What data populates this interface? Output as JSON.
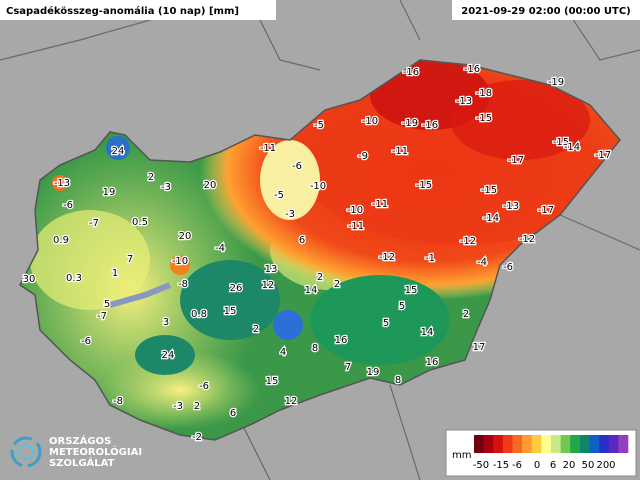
{
  "header": {
    "title": "Csapadékösszeg-anomália (10 nap) [mm]",
    "date": "2021-09-29 02:00 (00:00 UTC)"
  },
  "logo": {
    "lines": [
      "ORSZÁGOS",
      "METEOROLÓGIAI",
      "SZOLGÁLAT"
    ]
  },
  "legend": {
    "unit": "mm",
    "labels": [
      "-50",
      "-15",
      "-6",
      "0",
      "6",
      "20",
      "50",
      "200"
    ],
    "colors": [
      "#6e0010",
      "#a80012",
      "#d81010",
      "#f03a18",
      "#f86a20",
      "#ff9a30",
      "#ffcc40",
      "#ffff90",
      "#c8e888",
      "#70c850",
      "#20a848",
      "#0c8868",
      "#1060c8",
      "#2830c8",
      "#5a28c0",
      "#9040c0"
    ]
  },
  "stations": [
    -16,
    -16,
    -19,
    -13,
    -18,
    -5,
    -10,
    -19,
    -16,
    -15,
    -15,
    -14,
    -17,
    -11,
    -9,
    -11,
    -17,
    24,
    -6,
    -13,
    2,
    -3,
    20,
    -10,
    -15,
    -15,
    19,
    -5,
    -11,
    -13,
    -17,
    -6,
    -3,
    -10,
    -14,
    -7,
    0.5,
    -11,
    0.9,
    20,
    -4,
    6,
    -12,
    -12,
    7,
    -10,
    -12,
    -1,
    -4,
    -6,
    30,
    0.3,
    1,
    13,
    2,
    -8,
    26,
    12,
    14,
    2,
    15,
    5,
    -7,
    0.8,
    15,
    3,
    5,
    14,
    2,
    5,
    2,
    -6,
    16,
    8,
    4,
    17,
    24,
    7,
    16,
    19,
    15,
    8,
    -6,
    -8,
    -3,
    2,
    12,
    6,
    -2
  ]
}
